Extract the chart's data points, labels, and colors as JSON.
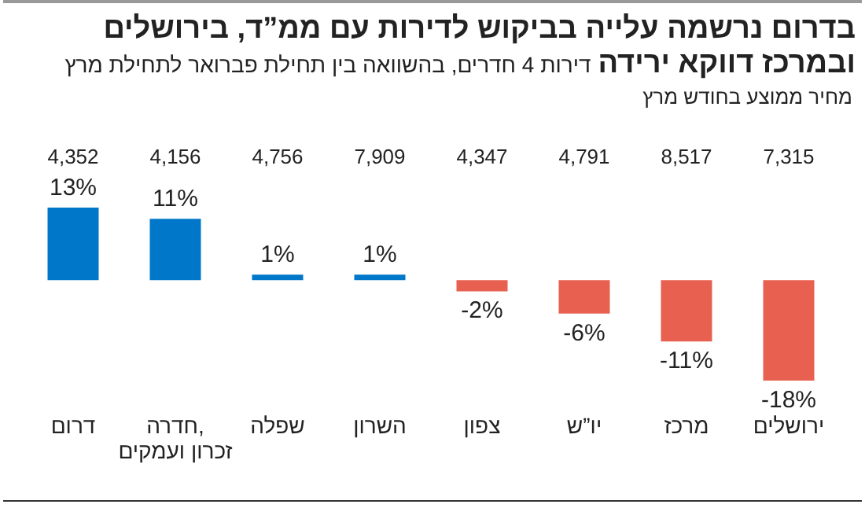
{
  "chart_data": {
    "type": "bar",
    "title": "בדרום נרשמה עלייה בביקוש לדירות עם ממ”ד, בירושלים ובמרכז דווקא ירידה",
    "subtitle": "דירות 4 חדרים, בהשוואה בין תחילת פברואר לתחילת מרץ",
    "categories": [
      "דרום",
      "חדרה, זכרון ועמקים",
      "שפלה",
      "השרון",
      "צפון",
      "יו”ש",
      "מרכז",
      "ירושלים"
    ],
    "values": [
      13,
      11,
      1,
      1,
      -2,
      -6,
      -11,
      -18
    ],
    "value_labels": [
      "13%",
      "11%",
      "1%",
      "1%",
      "-2%",
      "-6%",
      "-11%",
      "-18%"
    ],
    "colors": [
      "#0077c8",
      "#0077c8",
      "#0077c8",
      "#0077c8",
      "#e8604f",
      "#e8604f",
      "#e8604f",
      "#e8604f"
    ],
    "annotations": [
      "מחיר ממוצע בחודש מרץ",
      "4,352",
      "4,156",
      "4,756",
      "7,909",
      "4,347",
      "4,791",
      "8,517",
      "7,315"
    ]
  }
}
